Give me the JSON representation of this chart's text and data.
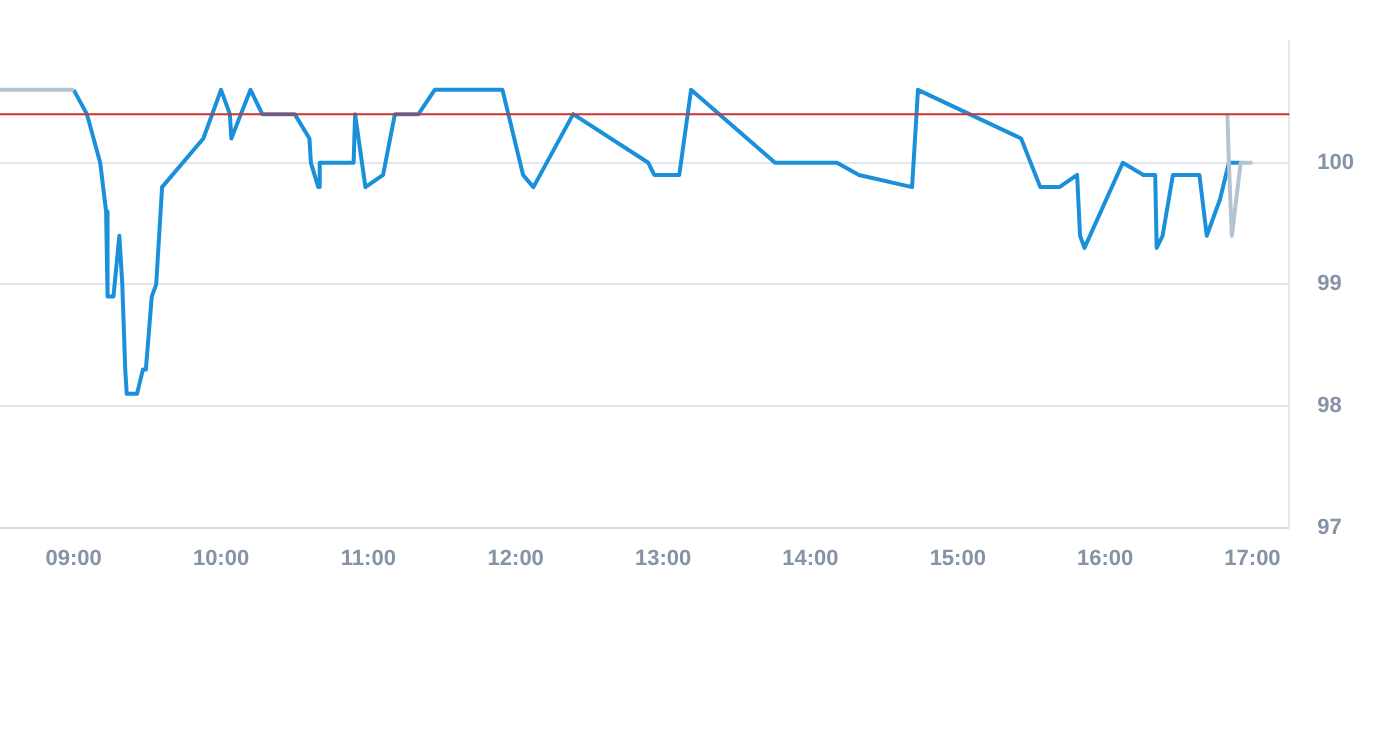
{
  "chart_data": {
    "type": "line",
    "xlim": [
      8.5,
      17.25
    ],
    "ylim": [
      97,
      101
    ],
    "xticks": [
      {
        "value": 9,
        "label": "09:00"
      },
      {
        "value": 10,
        "label": "10:00"
      },
      {
        "value": 11,
        "label": "11:00"
      },
      {
        "value": 12,
        "label": "12:00"
      },
      {
        "value": 13,
        "label": "13:00"
      },
      {
        "value": 14,
        "label": "14:00"
      },
      {
        "value": 15,
        "label": "15:00"
      },
      {
        "value": 16,
        "label": "16:00"
      },
      {
        "value": 17,
        "label": "17:00"
      }
    ],
    "yticks": [
      97,
      98,
      99,
      100
    ],
    "grid": "y",
    "legend": false,
    "marker": "none",
    "line_style": "solid",
    "series": [
      {
        "color": "#b4c3d2",
        "x": [
          8.5,
          9.0
        ],
        "values": [
          100.6,
          100.6
        ]
      },
      {
        "color": "#b4c3d2",
        "x": [
          16.83,
          16.84,
          16.86,
          16.92,
          17.0
        ],
        "values": [
          100.4,
          100.0,
          99.4,
          100.0,
          100.0
        ]
      },
      {
        "color": "#1a90db",
        "x": [
          9.0,
          9.09,
          9.18,
          9.22,
          9.23,
          9.27,
          9.31,
          9.33,
          9.35,
          9.36,
          9.43,
          9.47,
          9.49,
          9.53,
          9.56,
          9.6,
          9.88,
          10.0,
          10.06,
          10.07,
          10.2,
          10.28,
          10.5,
          10.6,
          10.61,
          10.66,
          10.67,
          10.9,
          10.91,
          10.98,
          11.1,
          11.18,
          11.34,
          11.45,
          11.91,
          12.05,
          12.12,
          12.39,
          12.9,
          12.94,
          13.11,
          13.19,
          13.76,
          14.18,
          14.33,
          14.69,
          14.73,
          15.43,
          15.56,
          15.69,
          15.81,
          15.83,
          15.86,
          16.12,
          16.26,
          16.34,
          16.35,
          16.39,
          16.46,
          16.64,
          16.69,
          16.78,
          16.84,
          16.92
        ],
        "values": [
          100.6,
          100.4,
          100.0,
          99.6,
          98.9,
          98.9,
          99.4,
          99.0,
          98.3,
          98.1,
          98.1,
          98.3,
          98.3,
          98.9,
          99.0,
          99.8,
          100.2,
          100.6,
          100.4,
          100.2,
          100.6,
          100.4,
          100.4,
          100.2,
          100.0,
          99.8,
          100.0,
          100.0,
          100.4,
          99.8,
          99.9,
          100.4,
          100.4,
          100.6,
          100.6,
          99.9,
          99.8,
          100.4,
          100.0,
          99.9,
          99.9,
          100.6,
          100.0,
          100.0,
          99.9,
          99.8,
          100.6,
          100.2,
          99.8,
          99.8,
          99.9,
          99.4,
          99.3,
          100.0,
          99.9,
          99.9,
          99.3,
          99.4,
          99.9,
          99.9,
          99.4,
          99.7,
          100.0,
          100.0
        ]
      }
    ],
    "ref_lines": [
      {
        "axis": "y",
        "value": 100.4,
        "color": "#cc3333"
      }
    ]
  }
}
